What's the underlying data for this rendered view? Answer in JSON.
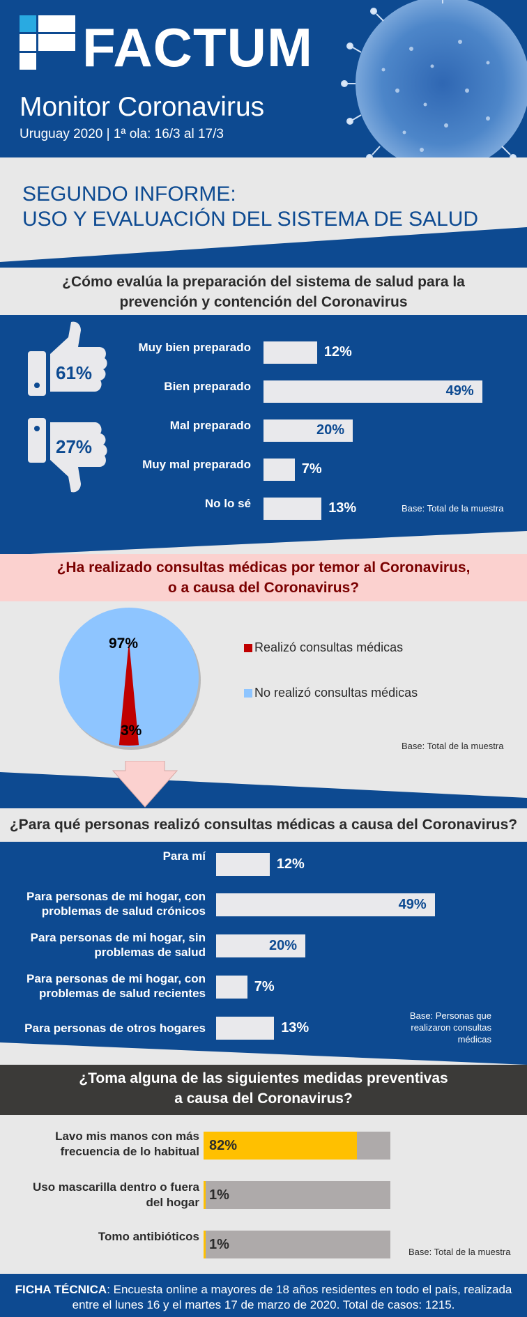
{
  "header": {
    "brand": "FACTUM",
    "title": "Monitor Coronavirus",
    "subtitle": "Uruguay 2020 | 1ª ola: 16/3 al 17/3",
    "report_line1": "SEGUNDO INFORME:",
    "report_line2": "USO Y EVALUACIÓN DEL SISTEMA DE SALUD",
    "colors": {
      "primary": "#0d4a91",
      "light_blue": "#29aae1",
      "pink": "#fbd1cf",
      "dark": "#3b3a38",
      "yellow": "#ffc000"
    }
  },
  "q1": {
    "title_l1": "¿Cómo evalúa la preparación del sistema de salud para la",
    "title_l2": "prevención y contención del Coronavirus",
    "thumb_up_pct": "61%",
    "thumb_down_pct": "27%",
    "base": "Base: Total de la muestra"
  },
  "q2": {
    "title_l1": "¿Ha  realizado consultas médicas por temor al Coronavirus,",
    "title_l2": "o a causa del Coronavirus?",
    "legend_yes": "Realizó consultas médicas",
    "legend_no": "No realizó consultas médicas",
    "base": "Base: Total de la muestra"
  },
  "q3": {
    "title": "¿Para qué personas realizó consultas médicas a causa del Coronavirus?",
    "base_l1": "Base: Personas que",
    "base_l2": "realizaron consultas",
    "base_l3": "médicas"
  },
  "q4": {
    "title_l1": "¿Toma alguna de las siguientes medidas preventivas",
    "title_l2": "a causa del Coronavirus?",
    "base": "Base: Total de la muestra"
  },
  "footer": {
    "label": "FICHA TÉCNICA",
    "text_l1": ": Encuesta online a mayores de 18 años residentes en todo el país, realizada",
    "text_l2": "entre el lunes 16 y el martes 17 de marzo de 2020. Total de casos: 1215."
  },
  "chart_data": [
    {
      "type": "bar",
      "title": "¿Cómo evalúa la preparación del sistema de salud para la prevención y contención del Coronavirus",
      "categories": [
        "Muy bien preparado",
        "Bien preparado",
        "Mal preparado",
        "Muy mal preparado",
        "No lo sé"
      ],
      "values": [
        12,
        49,
        20,
        7,
        13
      ],
      "labels": [
        "12%",
        "49%",
        "20%",
        "7%",
        "13%"
      ]
    },
    {
      "type": "pie",
      "title": "¿Ha realizado consultas médicas por temor al Coronavirus, o a causa del Coronavirus?",
      "categories": [
        "Realizó consultas médicas",
        "No realizó consultas médicas"
      ],
      "values": [
        3,
        97
      ],
      "labels": [
        "3%",
        "97%"
      ],
      "colors": [
        "#c00000",
        "#8ec5ff"
      ]
    },
    {
      "type": "bar",
      "title": "¿Para qué personas realizó consultas médicas a causa del Coronavirus?",
      "categories": [
        "Para mí",
        "Para personas de mi hogar, con problemas de salud crónicos",
        "Para personas de mi hogar, sin problemas de salud",
        "Para personas de mi hogar, con problemas de salud recientes",
        "Para personas de otros hogares"
      ],
      "values": [
        12,
        49,
        20,
        7,
        13
      ],
      "labels": [
        "12%",
        "49%",
        "20%",
        "7%",
        "13%"
      ]
    },
    {
      "type": "bar",
      "title": "¿Toma alguna de las siguientes medidas preventivas a causa del Coronavirus?",
      "categories": [
        "Lavo mis manos con más frecuencia de lo habitual",
        "Uso mascarilla dentro o fuera del hogar",
        "Tomo antibióticos"
      ],
      "values": [
        82,
        1,
        1
      ],
      "labels": [
        "82%",
        "1%",
        "1%"
      ],
      "colors": [
        "#ffc000",
        "#aeaaaa"
      ]
    }
  ]
}
